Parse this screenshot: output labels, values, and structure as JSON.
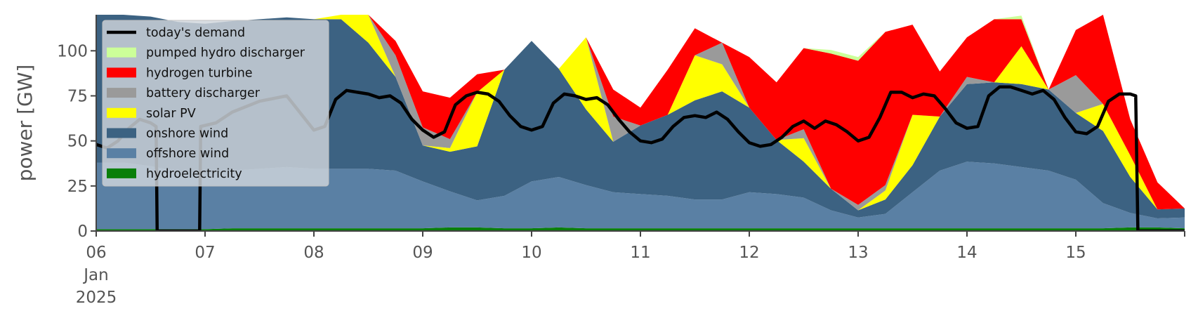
{
  "chart_data": {
    "type": "area",
    "ylabel": "power [GW]",
    "ylim": [
      0,
      120
    ],
    "yticks": [
      0,
      25,
      50,
      75,
      100
    ],
    "xlim": [
      0,
      10
    ],
    "xticks": [
      {
        "x": 0,
        "lines": [
          "06",
          "Jan",
          "2025"
        ]
      },
      {
        "x": 1,
        "lines": [
          "07"
        ]
      },
      {
        "x": 2,
        "lines": [
          "08"
        ]
      },
      {
        "x": 3,
        "lines": [
          "09"
        ]
      },
      {
        "x": 4,
        "lines": [
          "10"
        ]
      },
      {
        "x": 5,
        "lines": [
          "11"
        ]
      },
      {
        "x": 6,
        "lines": [
          "12"
        ]
      },
      {
        "x": 7,
        "lines": [
          "13"
        ]
      },
      {
        "x": 8,
        "lines": [
          "14"
        ]
      },
      {
        "x": 9,
        "lines": [
          "15"
        ]
      }
    ],
    "x": [
      0,
      0.25,
      0.5,
      0.75,
      1,
      1.25,
      1.5,
      1.75,
      2,
      2.25,
      2.5,
      2.75,
      3,
      3.25,
      3.5,
      3.75,
      4,
      4.25,
      4.5,
      4.75,
      5,
      5.25,
      5.5,
      5.75,
      6,
      6.25,
      6.5,
      6.75,
      7,
      7.25,
      7.5,
      7.75,
      8,
      8.25,
      8.5,
      8.75,
      9,
      9.25,
      9.5,
      9.75,
      10
    ],
    "grid": false,
    "legend_position": "top-left",
    "series": [
      {
        "name": "hydroelectricity",
        "color": "#0a7f0a",
        "values": [
          1.0,
          1.0,
          1.0,
          1.0,
          1.0,
          1.5,
          1.5,
          1.5,
          1.5,
          1.5,
          1.5,
          1.5,
          1.5,
          2.0,
          2.0,
          1.5,
          1.5,
          2.0,
          1.5,
          1.5,
          1.5,
          1.5,
          1.5,
          1.5,
          1.5,
          1.5,
          1.5,
          1.5,
          1.5,
          1.5,
          1.5,
          1.5,
          1.5,
          1.5,
          1.5,
          1.5,
          1.5,
          1.5,
          2.0,
          2.0,
          1.5
        ]
      },
      {
        "name": "offshore wind",
        "color": "#5a80a4",
        "values": [
          37,
          37,
          35,
          32,
          31,
          32,
          33,
          34,
          33,
          33,
          33,
          32,
          26,
          20,
          15,
          18,
          26,
          28,
          24,
          20,
          19,
          18,
          16,
          16,
          20,
          19,
          17,
          10,
          6,
          8,
          20,
          32,
          37,
          36,
          34,
          32,
          27,
          14,
          8,
          5,
          6
        ]
      },
      {
        "name": "onshore wind",
        "color": "#3c6282",
        "values": [
          83,
          83,
          83,
          83,
          83,
          83,
          83,
          83,
          83,
          83,
          70,
          52,
          20,
          22,
          30,
          70,
          78,
          60,
          42,
          28,
          38,
          45,
          55,
          60,
          47,
          30,
          20,
          12,
          4,
          8,
          15,
          30,
          43,
          45,
          46,
          45,
          37,
          40,
          20,
          5,
          5
        ]
      },
      {
        "name": "solar PV",
        "color": "#ffff00",
        "values": [
          0,
          0,
          0,
          0,
          0,
          0,
          0,
          0,
          0,
          25,
          25,
          0,
          0,
          2,
          30,
          0,
          0,
          0,
          40,
          0,
          0,
          0,
          25,
          15,
          0,
          0,
          13,
          0,
          0,
          5,
          28,
          0,
          0,
          0,
          21,
          0,
          0,
          15,
          12,
          0,
          0
        ]
      },
      {
        "name": "battery discharger",
        "color": "#9a9a9a",
        "values": [
          0,
          0,
          0,
          0,
          0,
          0,
          0,
          0,
          0,
          0,
          0,
          12,
          10,
          5,
          0,
          0,
          0,
          0,
          0,
          14,
          0,
          0,
          0,
          12,
          0,
          0,
          5,
          0,
          3,
          3,
          0,
          0,
          4,
          0,
          0,
          0,
          21,
          0,
          0,
          0,
          0
        ]
      },
      {
        "name": "hydrogen turbine",
        "color": "#ff0000",
        "values": [
          0,
          0,
          0,
          0,
          0,
          0,
          0,
          0,
          0,
          0,
          0,
          8,
          20,
          23,
          10,
          0,
          0,
          0,
          0,
          15,
          10,
          25,
          15,
          0,
          28,
          32,
          45,
          75,
          80,
          85,
          50,
          25,
          22,
          35,
          15,
          0,
          25,
          50,
          20,
          15,
          0
        ]
      },
      {
        "name": "pumped hydro discharger",
        "color": "#ccff99",
        "values": [
          0,
          0,
          0,
          0,
          0,
          0,
          0,
          0,
          0,
          0,
          0,
          0,
          0,
          0,
          0,
          0,
          0,
          0,
          0,
          0,
          0,
          0,
          0,
          0,
          0,
          0,
          0,
          2,
          2,
          0,
          0,
          0,
          0,
          0,
          2,
          0,
          0,
          1,
          0,
          0,
          0
        ]
      }
    ],
    "demand": {
      "name": "today's demand",
      "color": "#000000",
      "x": [
        0,
        0.1,
        0.2,
        0.3,
        0.4,
        0.5,
        0.55,
        0.56,
        0.95,
        0.96,
        1.1,
        1.25,
        1.5,
        1.75,
        2,
        2.1,
        2.2,
        2.3,
        2.4,
        2.5,
        2.6,
        2.7,
        2.8,
        2.9,
        3,
        3.1,
        3.2,
        3.3,
        3.4,
        3.5,
        3.6,
        3.7,
        3.8,
        3.9,
        4,
        4.1,
        4.2,
        4.3,
        4.4,
        4.5,
        4.6,
        4.7,
        4.8,
        4.9,
        5,
        5.1,
        5.2,
        5.3,
        5.4,
        5.5,
        5.6,
        5.7,
        5.8,
        5.9,
        6,
        6.1,
        6.2,
        6.3,
        6.4,
        6.5,
        6.6,
        6.7,
        6.8,
        6.9,
        7,
        7.1,
        7.2,
        7.3,
        7.4,
        7.5,
        7.6,
        7.7,
        7.8,
        7.9,
        8,
        8.1,
        8.2,
        8.3,
        8.4,
        8.5,
        8.6,
        8.7,
        8.8,
        8.9,
        9,
        9.1,
        9.2,
        9.3,
        9.4,
        9.5,
        9.55,
        9.57,
        10
      ],
      "values": [
        48,
        46,
        50,
        57,
        62,
        60,
        58,
        0,
        0,
        58,
        60,
        66,
        72,
        75,
        56,
        58,
        73,
        78,
        77,
        76,
        74,
        75,
        71,
        62,
        56,
        52,
        55,
        70,
        75,
        77,
        76,
        72,
        64,
        58,
        56,
        58,
        71,
        76,
        75,
        73,
        74,
        70,
        62,
        55,
        50,
        49,
        51,
        58,
        63,
        64,
        63,
        66,
        62,
        55,
        49,
        47,
        48,
        52,
        58,
        61,
        57,
        61,
        59,
        55,
        50,
        52,
        63,
        77,
        77,
        74,
        76,
        75,
        68,
        60,
        57,
        58,
        75,
        80,
        80,
        78,
        76,
        78,
        73,
        63,
        55,
        54,
        58,
        72,
        76,
        76,
        75,
        0,
        0
      ]
    }
  }
}
